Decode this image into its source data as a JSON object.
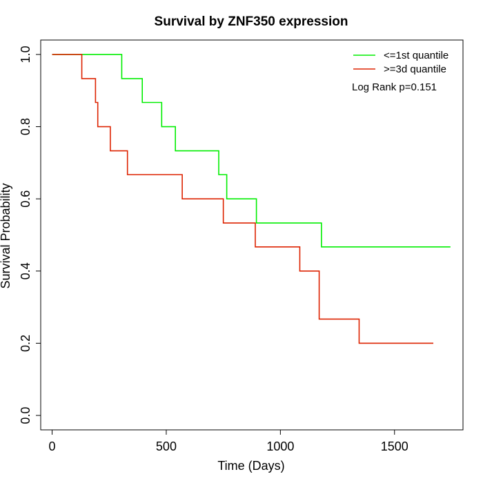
{
  "chart_data": {
    "type": "line",
    "title": "Survival by ZNF350 expression",
    "xlabel": "Time (Days)",
    "ylabel": "Survival Probability",
    "xlim": [
      -50,
      1800
    ],
    "ylim": [
      -0.04,
      1.04
    ],
    "xticks": [
      0,
      500,
      1000,
      1500
    ],
    "xtick_labels": [
      "0",
      "500",
      "1000",
      "1500"
    ],
    "yticks": [
      0.0,
      0.2,
      0.4,
      0.6,
      0.8,
      1.0
    ],
    "ytick_labels": [
      "0.0",
      "0.2",
      "0.4",
      "0.6",
      "0.8",
      "1.0"
    ],
    "grid": false,
    "legend_position": "top-right",
    "annotation": "Log Rank p=0.151",
    "series": [
      {
        "name": "<=1st quantile",
        "color": "#00ee00",
        "step_x": [
          0,
          305,
          395,
          480,
          540,
          730,
          765,
          895,
          1180,
          1745
        ],
        "step_y": [
          1.0,
          0.933,
          0.867,
          0.8,
          0.733,
          0.667,
          0.6,
          0.533,
          0.467,
          0.467
        ]
      },
      {
        "name": ">=3d quantile",
        "color": "#dd2200",
        "step_x": [
          0,
          130,
          190,
          200,
          255,
          330,
          570,
          750,
          890,
          1085,
          1170,
          1345,
          1670
        ],
        "step_y": [
          1.0,
          0.933,
          0.867,
          0.8,
          0.733,
          0.667,
          0.6,
          0.533,
          0.467,
          0.4,
          0.267,
          0.2,
          0.2
        ]
      }
    ]
  }
}
